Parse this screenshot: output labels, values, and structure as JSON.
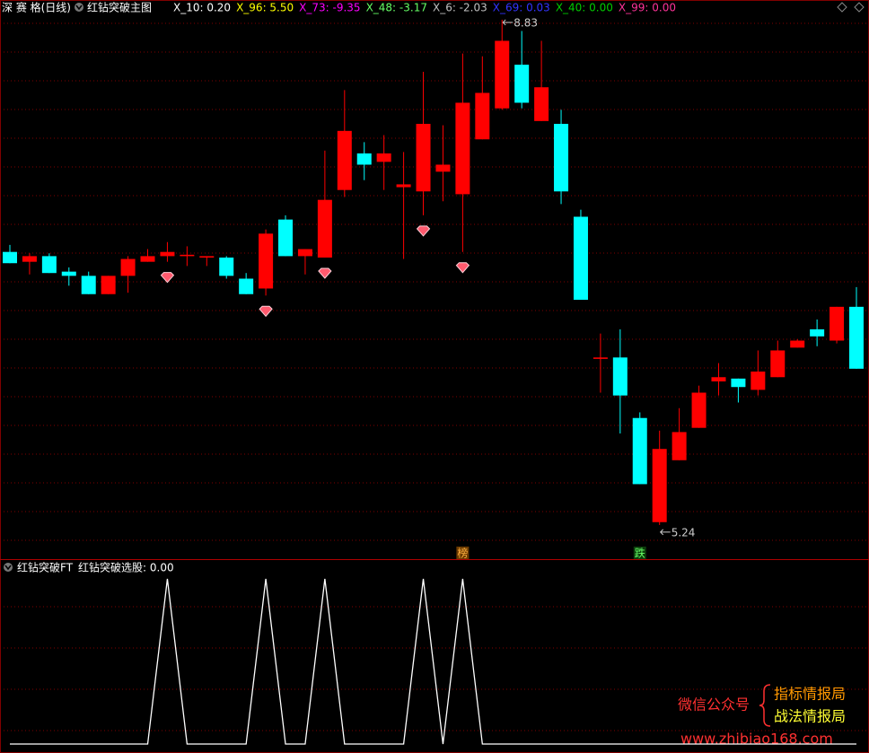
{
  "header": {
    "symbol": "深 赛 格(日线)",
    "indicator": "红钻突破主图",
    "readouts": [
      {
        "text": "X_10: 0.20",
        "color": "#ffffff"
      },
      {
        "text": "X_96: 5.50",
        "color": "#ffff00"
      },
      {
        "text": "X_73: -9.35",
        "color": "#ff00ff"
      },
      {
        "text": "X_48: -3.17",
        "color": "#66ff66"
      },
      {
        "text": "X_6: -2.03",
        "color": "#c0c0c0"
      },
      {
        "text": "X_69: 0.03",
        "color": "#3333ff"
      },
      {
        "text": "X_40: 0.00",
        "color": "#00cc00"
      },
      {
        "text": "X_99: 0.00",
        "color": "#ff3399"
      }
    ]
  },
  "chart_data": [
    {
      "type": "candlestick",
      "up_color": "#ff0000",
      "down_color": "#00ffff",
      "ylim": [
        5.08,
        8.97
      ],
      "open": [
        7.18,
        7.11,
        7.15,
        7.04,
        7.01,
        6.88,
        7.01,
        7.11,
        7.15,
        7.15,
        7.14,
        7.14,
        6.99,
        6.92,
        7.41,
        7.15,
        7.14,
        7.62,
        7.88,
        7.82,
        7.64,
        7.61,
        7.75,
        7.59,
        7.98,
        8.2,
        8.51,
        8.11,
        8.09,
        7.43,
        6.42,
        6.43,
        6.0,
        5.26,
        5.7,
        5.93,
        6.26,
        6.28,
        6.2,
        6.29,
        6.5,
        6.63,
        6.55,
        6.79
      ],
      "high": [
        7.23,
        7.17,
        7.17,
        7.07,
        7.04,
        7.01,
        7.15,
        7.2,
        7.25,
        7.22,
        7.15,
        7.15,
        7.03,
        7.34,
        7.44,
        7.2,
        7.9,
        8.33,
        7.96,
        8.01,
        7.89,
        8.46,
        8.08,
        8.59,
        8.57,
        8.83,
        8.75,
        8.68,
        8.19,
        7.48,
        6.6,
        6.63,
        6.04,
        5.91,
        6.07,
        6.23,
        6.39,
        6.28,
        6.48,
        6.55,
        6.56,
        6.7,
        6.79,
        6.93
      ],
      "low": [
        7.1,
        7.02,
        7.03,
        6.94,
        6.88,
        6.88,
        6.89,
        7.11,
        7.11,
        7.08,
        7.08,
        6.99,
        6.88,
        6.87,
        7.15,
        7.02,
        7.14,
        7.57,
        7.69,
        7.62,
        7.13,
        7.44,
        7.54,
        7.18,
        7.98,
        8.19,
        8.2,
        8.11,
        7.52,
        6.84,
        6.18,
        5.89,
        5.53,
        5.24,
        5.7,
        5.93,
        6.16,
        6.11,
        6.16,
        6.29,
        6.5,
        6.51,
        6.53,
        6.35
      ],
      "close": [
        7.1,
        7.15,
        7.03,
        7.01,
        6.88,
        7.01,
        7.13,
        7.15,
        7.18,
        7.16,
        7.15,
        7.01,
        6.88,
        7.31,
        7.15,
        7.2,
        7.55,
        8.04,
        7.8,
        7.88,
        7.66,
        8.09,
        7.8,
        8.24,
        8.31,
        8.68,
        8.24,
        8.35,
        7.61,
        6.84,
        6.43,
        6.16,
        5.53,
        5.78,
        5.9,
        6.18,
        6.29,
        6.22,
        6.33,
        6.48,
        6.55,
        6.58,
        6.79,
        6.35
      ],
      "flags": [
        null,
        null,
        null,
        null,
        null,
        null,
        null,
        null,
        null,
        null,
        null,
        null,
        null,
        null,
        null,
        null,
        null,
        null,
        null,
        null,
        null,
        null,
        null,
        "榜",
        null,
        null,
        null,
        null,
        null,
        null,
        null,
        null,
        "跌",
        null,
        null,
        null,
        null,
        null,
        null,
        null,
        null,
        null,
        null,
        null
      ],
      "max_index": 25,
      "min_index": 33
    },
    {
      "type": "line",
      "title": "红钻突破FT",
      "readout": "红钻突破选股: 0.00",
      "color": "#ffffff",
      "ylim": [
        0,
        1
      ],
      "values": [
        0,
        0,
        0,
        0,
        0,
        0,
        0,
        0,
        1,
        0,
        0,
        0,
        0,
        1,
        0,
        0,
        1,
        0,
        0,
        0,
        0,
        1,
        0,
        1,
        0,
        0,
        0,
        0,
        0,
        0,
        0,
        0,
        0,
        0,
        0,
        0,
        0,
        0,
        0,
        0,
        0,
        0,
        0,
        0
      ]
    }
  ],
  "watermark": {
    "account_label": "微信公众号",
    "name1": "指标情报局",
    "name2": "战法情报局",
    "url": "www.zhibiao168.com"
  }
}
